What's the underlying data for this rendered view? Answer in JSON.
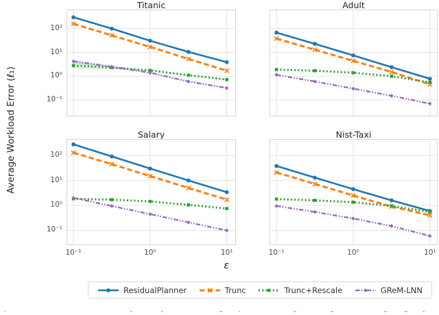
{
  "chart_data": {
    "type": "line",
    "x_label": "ε",
    "y_label": "Average Workload Error (ℓ₁)",
    "x_scale": "log",
    "y_scale": "log",
    "grid": true,
    "legend_position": "bottom",
    "x": [
      0.1,
      0.316,
      1,
      3.162,
      10
    ],
    "x_tick_labels": [
      "10⁻¹",
      "10⁰",
      "10¹"
    ],
    "x_tick_values": [
      0.1,
      1,
      10
    ],
    "y_tick_labels": [
      "10²",
      "10¹",
      "10⁰",
      "10⁻¹"
    ],
    "y_tick_values": [
      100,
      10,
      1,
      0.1
    ],
    "legend": [
      {
        "name": "ResidualPlanner",
        "color": "#1f77b4",
        "line": "solid",
        "marker": "circle"
      },
      {
        "name": "Trunc",
        "color": "#ff7f0e",
        "line": "dashed",
        "marker": "x"
      },
      {
        "name": "Trunc+Rescale",
        "color": "#2ca02c",
        "line": "dotted",
        "marker": "square"
      },
      {
        "name": "GReM-LNN",
        "color": "#9467bd",
        "line": "dashdot",
        "marker": "diamond"
      }
    ],
    "panels": [
      {
        "title": "Titanic",
        "series": [
          {
            "name": "ResidualPlanner",
            "values": [
              300,
              100,
              31,
              10.5,
              3.9
            ]
          },
          {
            "name": "Trunc",
            "values": [
              160,
              52,
              17,
              5.3,
              1.7
            ]
          },
          {
            "name": "Trunc+Rescale",
            "values": [
              2.8,
              2.3,
              1.75,
              1.1,
              0.72
            ]
          },
          {
            "name": "GReM-LNN",
            "values": [
              4.2,
              2.5,
              1.4,
              0.6,
              0.32
            ]
          }
        ],
        "bands": [
          {
            "series": "Trunc+Rescale",
            "upper": [
              3.8,
              2.65,
              1.9,
              1.15,
              0.76
            ],
            "lower": [
              2.0,
              2.0,
              1.62,
              1.05,
              0.68
            ]
          },
          {
            "series": "GReM-LNN",
            "upper": [
              5.0,
              2.85,
              1.5,
              0.64,
              0.34
            ],
            "lower": [
              3.5,
              2.2,
              1.31,
              0.56,
              0.3
            ]
          }
        ]
      },
      {
        "title": "Adult",
        "series": [
          {
            "name": "ResidualPlanner",
            "values": [
              68,
              23,
              7.5,
              2.4,
              0.78
            ]
          },
          {
            "name": "Trunc",
            "values": [
              38,
              13,
              4.4,
              1.5,
              0.45
            ]
          },
          {
            "name": "Trunc+Rescale",
            "values": [
              1.9,
              1.7,
              1.4,
              1.0,
              0.55
            ]
          },
          {
            "name": "GReM-LNN",
            "values": [
              1.15,
              0.6,
              0.3,
              0.15,
              0.07
            ]
          }
        ],
        "bands": []
      },
      {
        "title": "Salary",
        "series": [
          {
            "name": "ResidualPlanner",
            "values": [
              280,
              92,
              30,
              10,
              3.4
            ]
          },
          {
            "name": "Trunc",
            "values": [
              130,
              45,
              15,
              5,
              1.7
            ]
          },
          {
            "name": "Trunc+Rescale",
            "values": [
              1.85,
              1.7,
              1.45,
              1.05,
              0.75
            ]
          },
          {
            "name": "GReM-LNN",
            "values": [
              2.0,
              0.95,
              0.45,
              0.21,
              0.1
            ]
          }
        ],
        "bands": []
      },
      {
        "title": "Nist-Taxi",
        "series": [
          {
            "name": "ResidualPlanner",
            "values": [
              38,
              13,
              4.5,
              1.6,
              0.6
            ]
          },
          {
            "name": "Trunc",
            "values": [
              21,
              7.2,
              2.5,
              0.9,
              0.4
            ]
          },
          {
            "name": "Trunc+Rescale",
            "values": [
              1.8,
              1.6,
              1.35,
              0.95,
              0.55
            ]
          },
          {
            "name": "GReM-LNN",
            "values": [
              0.95,
              0.55,
              0.3,
              0.15,
              0.06
            ]
          }
        ],
        "bands": []
      }
    ]
  }
}
